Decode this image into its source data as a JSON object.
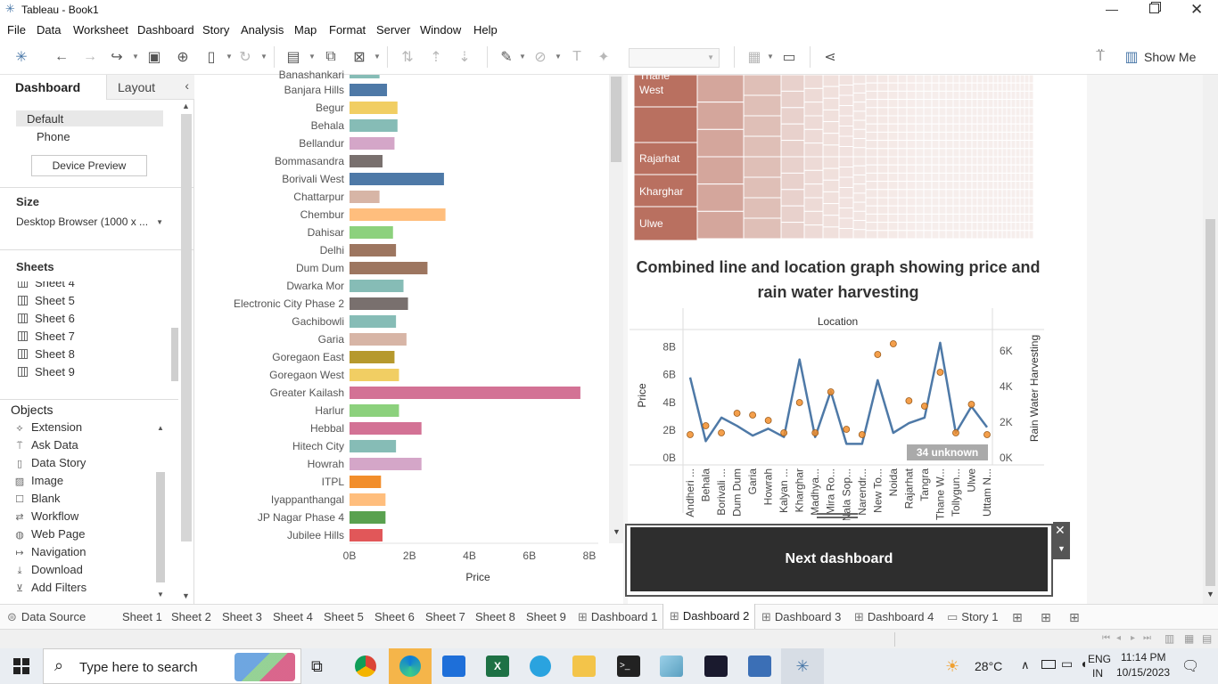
{
  "window": {
    "title": "Tableau - Book1"
  },
  "menu": [
    "File",
    "Data",
    "Worksheet",
    "Dashboard",
    "Story",
    "Analysis",
    "Map",
    "Format",
    "Server",
    "Window",
    "Help"
  ],
  "toolbar": {
    "show_me": "Show Me"
  },
  "left_pane": {
    "tabs": {
      "dashboard": "Dashboard",
      "layout": "Layout"
    },
    "devices": {
      "default": "Default",
      "phone": "Phone",
      "preview_button": "Device Preview"
    },
    "size": {
      "title": "Size",
      "value": "Desktop Browser (1000 x ..."
    },
    "sheets": {
      "title": "Sheets",
      "items": [
        "Sheet 4",
        "Sheet 5",
        "Sheet 6",
        "Sheet 7",
        "Sheet 8",
        "Sheet 9"
      ]
    },
    "objects": {
      "title": "Objects",
      "items": [
        {
          "label": "Extension",
          "icon": "extension-icon"
        },
        {
          "label": "Ask Data",
          "icon": "ask-data-icon"
        },
        {
          "label": "Data Story",
          "icon": "data-story-icon"
        },
        {
          "label": "Image",
          "icon": "image-icon"
        },
        {
          "label": "Blank",
          "icon": "blank-icon"
        },
        {
          "label": "Workflow",
          "icon": "workflow-icon"
        },
        {
          "label": "Web Page",
          "icon": "web-page-icon"
        },
        {
          "label": "Navigation",
          "icon": "navigation-icon"
        },
        {
          "label": "Download",
          "icon": "download-icon"
        },
        {
          "label": "Add Filters",
          "icon": "add-filters-icon"
        }
      ]
    }
  },
  "bar_chart": {
    "xlabel": "Price",
    "x_ticks": [
      "0B",
      "2B",
      "4B",
      "6B",
      "8B"
    ],
    "xlim": [
      0,
      8
    ],
    "top_partial_label": "Banashankari",
    "bars": [
      {
        "label": "Banjara Hills",
        "value": 1.25,
        "color": "#4e79a7"
      },
      {
        "label": "Begur",
        "value": 1.6,
        "color": "#f1ce63"
      },
      {
        "label": "Behala",
        "value": 1.6,
        "color": "#86bcb6"
      },
      {
        "label": "Bellandur",
        "value": 1.5,
        "color": "#d4a6c8"
      },
      {
        "label": "Bommasandra",
        "value": 1.1,
        "color": "#79706e"
      },
      {
        "label": "Borivali West",
        "value": 3.15,
        "color": "#4e79a7"
      },
      {
        "label": "Chattarpur",
        "value": 1.0,
        "color": "#d7b5a6"
      },
      {
        "label": "Chembur",
        "value": 3.2,
        "color": "#ffbe7d"
      },
      {
        "label": "Dahisar",
        "value": 1.45,
        "color": "#8cd17d"
      },
      {
        "label": "Delhi",
        "value": 1.55,
        "color": "#9d7660"
      },
      {
        "label": "Dum Dum",
        "value": 2.6,
        "color": "#9d7660"
      },
      {
        "label": "Dwarka Mor",
        "value": 1.8,
        "color": "#86bcb6"
      },
      {
        "label": "Electronic City Phase 2",
        "value": 1.95,
        "color": "#79706e"
      },
      {
        "label": "Gachibowli",
        "value": 1.55,
        "color": "#86bcb6"
      },
      {
        "label": "Garia",
        "value": 1.9,
        "color": "#d7b5a6"
      },
      {
        "label": "Goregaon East",
        "value": 1.5,
        "color": "#b6992d"
      },
      {
        "label": "Goregaon West",
        "value": 1.65,
        "color": "#f1ce63"
      },
      {
        "label": "Greater Kailash",
        "value": 7.7,
        "color": "#d37295"
      },
      {
        "label": "Harlur",
        "value": 1.65,
        "color": "#8cd17d"
      },
      {
        "label": "Hebbal",
        "value": 2.4,
        "color": "#d37295"
      },
      {
        "label": "Hitech City",
        "value": 1.55,
        "color": "#86bcb6"
      },
      {
        "label": "Howrah",
        "value": 2.4,
        "color": "#d4a6c8"
      },
      {
        "label": "ITPL",
        "value": 1.05,
        "color": "#f28e2b"
      },
      {
        "label": "Iyappanthangal",
        "value": 1.2,
        "color": "#ffbe7d"
      },
      {
        "label": "JP Nagar Phase 4",
        "value": 1.2,
        "color": "#59a14f"
      },
      {
        "label": "Jubilee Hills",
        "value": 1.1,
        "color": "#e15759"
      }
    ]
  },
  "treemap": {
    "labels": [
      "Thane West",
      "Rajarhat",
      "Kharghar",
      "Ulwe"
    ],
    "color": "#b97060"
  },
  "combined": {
    "title": "Combined line and location graph showing price and rain water harvesting",
    "top_label": "Location",
    "left_axis_label": "Price",
    "right_axis_label": "Rain Water Harvesting",
    "left_ticks": [
      "0B",
      "2B",
      "4B",
      "6B",
      "8B"
    ],
    "right_ticks": [
      "0K",
      "2K",
      "4K",
      "6K"
    ],
    "unknown_badge": "34 unknown",
    "categories": [
      "Andheri ...",
      "Behala",
      "Borivali ...",
      "Dum Dum",
      "Garia",
      "Howrah",
      "Kalyan ...",
      "Kharghar",
      "Madhya...",
      "Mira Ro...",
      "Nala Sop...",
      "Narendr...",
      "New To...",
      "Noida",
      "Rajarhat",
      "Tangra",
      "Thane W...",
      "Tollygun...",
      "Ulwe",
      "Uttam N..."
    ]
  },
  "chart_data": [
    {
      "type": "bar",
      "title": "",
      "xlabel": "Price",
      "ylabel": "",
      "orientation": "horizontal",
      "xlim": [
        0,
        8
      ],
      "unit": "B",
      "categories": [
        "Banjara Hills",
        "Begur",
        "Behala",
        "Bellandur",
        "Bommasandra",
        "Borivali West",
        "Chattarpur",
        "Chembur",
        "Dahisar",
        "Delhi",
        "Dum Dum",
        "Dwarka Mor",
        "Electronic City Phase 2",
        "Gachibowli",
        "Garia",
        "Goregaon East",
        "Goregaon West",
        "Greater Kailash",
        "Harlur",
        "Hebbal",
        "Hitech City",
        "Howrah",
        "ITPL",
        "Iyappanthangal",
        "JP Nagar Phase 4",
        "Jubilee Hills"
      ],
      "values": [
        1.25,
        1.6,
        1.6,
        1.5,
        1.1,
        3.15,
        1.0,
        3.2,
        1.45,
        1.55,
        2.6,
        1.8,
        1.95,
        1.55,
        1.9,
        1.5,
        1.65,
        7.7,
        1.65,
        2.4,
        1.55,
        2.4,
        1.05,
        1.2,
        1.2,
        1.1
      ]
    },
    {
      "type": "line",
      "title": "Combined line and location graph showing price and rain water harvesting",
      "xlabel": "Location",
      "categories": [
        "Andheri ...",
        "Behala",
        "Borivali ...",
        "Dum Dum",
        "Garia",
        "Howrah",
        "Kalyan ...",
        "Kharghar",
        "Madhya...",
        "Mira Ro...",
        "Nala Sop...",
        "Narendr...",
        "New To...",
        "Noida",
        "Rajarhat",
        "Tangra",
        "Thane W...",
        "Tollygun...",
        "Ulwe",
        "Uttam N..."
      ],
      "series": [
        {
          "name": "Price",
          "axis": "left",
          "unit": "B",
          "values": [
            5.8,
            1.2,
            2.9,
            2.3,
            1.6,
            2.1,
            1.5,
            7.1,
            1.5,
            4.8,
            1.0,
            1.0,
            5.6,
            1.8,
            2.5,
            2.9,
            8.3,
            1.8,
            3.7,
            2.2
          ]
        },
        {
          "name": "Rain Water Harvesting",
          "axis": "right",
          "unit": "K",
          "marker": "circle",
          "values": [
            1.3,
            1.8,
            1.4,
            2.5,
            2.4,
            2.1,
            1.4,
            3.1,
            1.4,
            3.7,
            1.6,
            1.3,
            5.8,
            6.4,
            3.2,
            2.9,
            4.8,
            1.4,
            3.0,
            1.3
          ]
        }
      ],
      "ylim_left": [
        0,
        9
      ],
      "ylim_right": [
        0,
        7
      ],
      "annotations": [
        "34 unknown"
      ]
    }
  ],
  "next_button": {
    "label": "Next dashboard"
  },
  "bottom_tabs": [
    "Data Source",
    "Sheet 1",
    "Sheet 2",
    "Sheet 3",
    "Sheet 4",
    "Sheet 5",
    "Sheet 6",
    "Sheet 7",
    "Sheet 8",
    "Sheet 9",
    "Dashboard 1",
    "Dashboard 2",
    "Dashboard 3",
    "Dashboard 4",
    "Story 1"
  ],
  "active_tab": "Dashboard 2",
  "taskbar": {
    "search_placeholder": "Type here to search",
    "weather": "28°C",
    "lang1": "ENG",
    "lang2": "IN",
    "time": "11:14 PM",
    "date": "10/15/2023"
  }
}
